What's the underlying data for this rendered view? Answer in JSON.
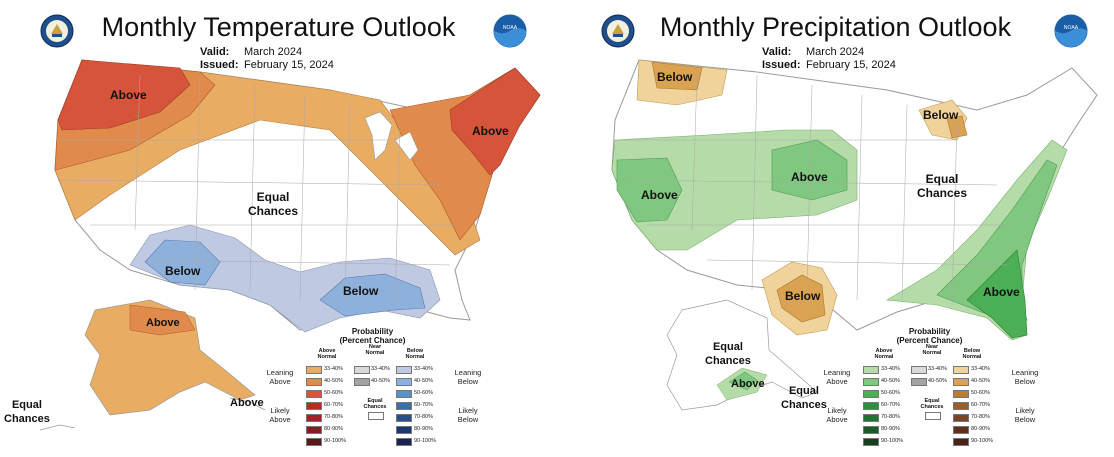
{
  "temperature": {
    "title": "Monthly Temperature Outlook",
    "valid_label": "Valid:",
    "valid_value": "March 2024",
    "issued_label": "Issued:",
    "issued_value": "February 15, 2024",
    "labels": {
      "above_nw": "Above",
      "above_ne": "Above",
      "equal_line1": "Equal",
      "equal_line2": "Chances",
      "below_sw": "Below",
      "below_s": "Below",
      "above_ak": "Above",
      "above_ak2": "Above",
      "equal_ak_line1": "Equal",
      "equal_ak_line2": "Chances"
    }
  },
  "precipitation": {
    "title": "Monthly Precipitation Outlook",
    "valid_label": "Valid:",
    "valid_value": "March 2024",
    "issued_label": "Issued:",
    "issued_value": "February 15, 2024",
    "labels": {
      "below_nw": "Below",
      "below_gl": "Below",
      "above_w": "Above",
      "above_c": "Above",
      "equal_line1": "Equal",
      "equal_line2": "Chances",
      "below_tx": "Below",
      "above_se": "Above",
      "equal_ak_line1": "Equal",
      "equal_ak_line2": "Chances",
      "above_ak": "Above",
      "equal_ak2_line1": "Equal",
      "equal_ak2_line2": "Chances"
    }
  },
  "legend": {
    "title_line1": "Probability",
    "title_line2": "(Percent Chance)",
    "above_head_1": "Above",
    "above_head_2": "Normal",
    "near_head_1": "Near",
    "near_head_2": "Normal",
    "below_head_1": "Below",
    "below_head_2": "Normal",
    "leaning_above_1": "Leaning",
    "leaning_above_2": "Above",
    "likely_above_1": "Likely",
    "likely_above_2": "Above",
    "leaning_below_1": "Leaning",
    "leaning_below_2": "Below",
    "likely_below_1": "Likely",
    "likely_below_2": "Below",
    "equal_1": "Equal",
    "equal_2": "Chances",
    "ranges": [
      "33-40%",
      "40-50%",
      "50-60%",
      "60-70%",
      "70-80%",
      "80-90%",
      "90-100%"
    ],
    "near_ranges": [
      "33-40%",
      "40-50%"
    ],
    "temp_above_colors": [
      "#e8ac63",
      "#e08a4b",
      "#d6553a",
      "#c2281f",
      "#a6202b",
      "#8b1a23",
      "#5a1a18"
    ],
    "temp_below_colors": [
      "#c0c9e2",
      "#8eb1dc",
      "#5a90c8",
      "#3b6fa8",
      "#274f8a",
      "#1e3670",
      "#1a2350"
    ],
    "precip_above_colors": [
      "#b5dca8",
      "#80c780",
      "#4daf55",
      "#2c8f3d",
      "#237330",
      "#1c5a28",
      "#163f1f"
    ],
    "precip_below_colors": [
      "#f0d39a",
      "#d9a352",
      "#b87c35",
      "#9a5d2c",
      "#7b4426",
      "#622f1f",
      "#4a2217"
    ],
    "near_colors": [
      "#d9d9d9",
      "#a3a3a3"
    ]
  }
}
